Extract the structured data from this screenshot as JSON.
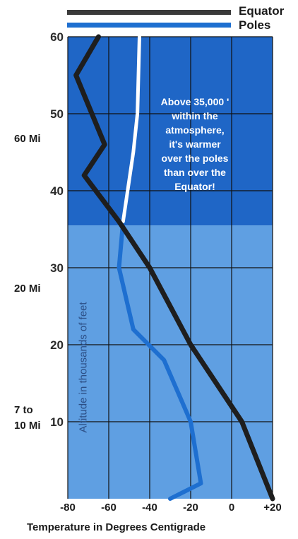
{
  "chart_data": {
    "type": "line",
    "xlabel": "Temperature in Degrees Centigrade",
    "ylabel": "Altitude in thousands of feet",
    "xlim": [
      -80,
      20
    ],
    "ylim": [
      0,
      60
    ],
    "x_ticks": [
      "-80",
      "-60",
      "-40",
      "-20",
      "0",
      "+20"
    ],
    "y_ticks": [
      "10",
      "20",
      "30",
      "40",
      "50",
      "60"
    ],
    "series": [
      {
        "name": "Equator",
        "color": "#1e1e1e",
        "points": [
          [
            20,
            0
          ],
          [
            5,
            10
          ],
          [
            -20,
            20
          ],
          [
            -40,
            30
          ],
          [
            -55,
            36
          ],
          [
            -72,
            42
          ],
          [
            -62,
            46
          ],
          [
            -76,
            55
          ],
          [
            -65,
            60
          ]
        ]
      },
      {
        "name": "Poles",
        "color_lower": "#1e6fd0",
        "color_upper": "#ffffff",
        "points": [
          [
            -30,
            0
          ],
          [
            -15,
            2
          ],
          [
            -20,
            10
          ],
          [
            -33,
            18
          ],
          [
            -48,
            22
          ],
          [
            -55,
            30
          ],
          [
            -53,
            36
          ],
          [
            -48,
            45
          ],
          [
            -46,
            50
          ],
          [
            -45,
            60
          ]
        ]
      }
    ],
    "annotation": "Above 35,000 '\nwithin the\natmosphere,\nit's warmer\nover the poles\nthan over the\nEquator!",
    "side_labels": [
      "60 Mi",
      "20 Mi",
      "7 to\n10 Mi"
    ],
    "band_split_altitude": 35.5,
    "colors": {
      "upper_band": "#1f66c6",
      "lower_band": "#5f9fe2",
      "grid": "#111111"
    },
    "legend": "top-right",
    "grid": true
  }
}
